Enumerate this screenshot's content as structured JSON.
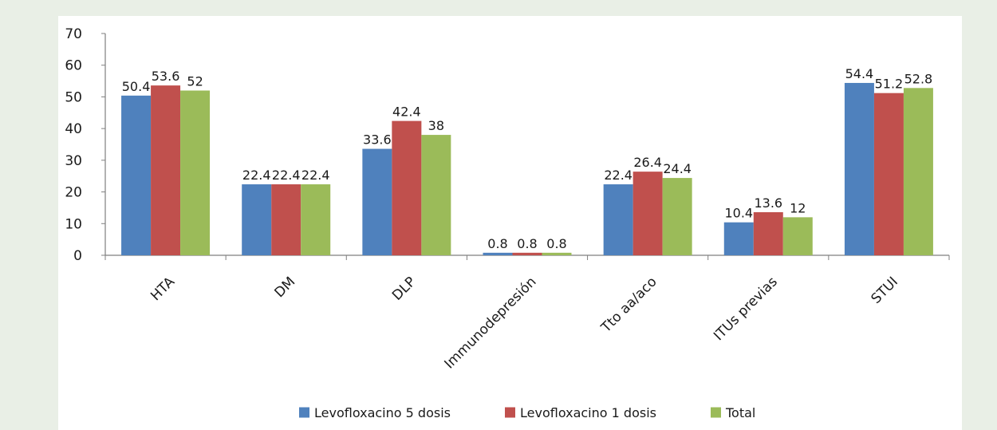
{
  "chart_data": {
    "type": "bar",
    "categories": [
      "HTA",
      "DM",
      "DLP",
      "Immunodepresión",
      "Tto aa/aco",
      "ITUs previas",
      "STUI"
    ],
    "series": [
      {
        "name": "Levofloxacino 5 dosis",
        "color": "#4f81bd",
        "values": [
          50.4,
          22.4,
          33.6,
          0.8,
          22.4,
          10.4,
          54.4
        ]
      },
      {
        "name": "Levofloxacino 1 dosis",
        "color": "#c0504d",
        "values": [
          53.6,
          22.4,
          42.4,
          0.8,
          26.4,
          13.6,
          51.2
        ]
      },
      {
        "name": "Total",
        "color": "#9bbb59",
        "values": [
          52,
          22.4,
          38,
          0.8,
          24.4,
          12,
          52.8
        ]
      }
    ],
    "ylim": [
      0,
      70
    ],
    "yticks": [
      0,
      10,
      20,
      30,
      40,
      50,
      60,
      70
    ],
    "grid": false,
    "legend_position": "bottom",
    "title": "",
    "xlabel": "",
    "ylabel": ""
  }
}
